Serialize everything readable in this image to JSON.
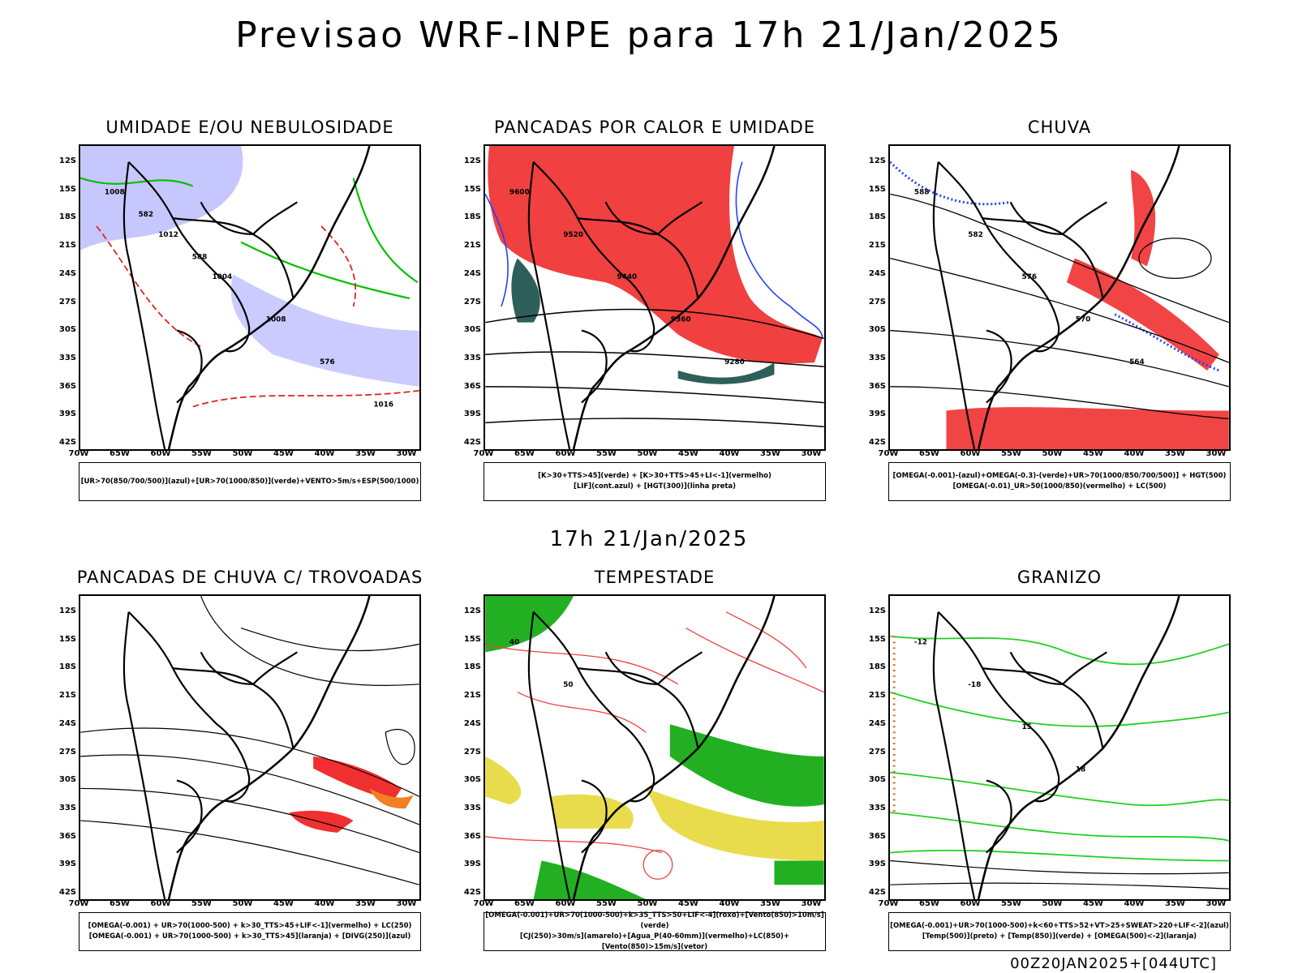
{
  "title": "Previsao WRF-INPE  para 17h 21/Jan/2025",
  "subtitle": "17h 21/Jan/2025",
  "footer": "00Z20JAN2025+[044UTC]",
  "axes": {
    "lat_labels": [
      "12S",
      "15S",
      "18S",
      "21S",
      "24S",
      "27S",
      "30S",
      "33S",
      "36S",
      "39S",
      "42S"
    ],
    "lon_labels": [
      "70W",
      "65W",
      "60W",
      "55W",
      "50W",
      "45W",
      "40W",
      "35W",
      "30W"
    ]
  },
  "panels": [
    {
      "title": "UMIDADE E/OU NEBULOSIDADE",
      "legend": [
        "[UR>70(850/700/500)](azul)+[UR>70(1000/850)](verde)+VENTO>5m/s+ESP(500/1000)"
      ],
      "contour_labels": [
        "1008",
        "1012",
        "1004",
        "1008",
        "576",
        "1016",
        "582",
        "588"
      ],
      "colors": {
        "fill": "#b9b9ff",
        "contour": "#00c000",
        "line2": "#e02020"
      }
    },
    {
      "title": "PANCADAS POR CALOR E UMIDADE",
      "legend": [
        "[K>30+TTS>45](verde) + [K>30+TTS>45+LI<-1](vermelho)",
        "[LIF](cont.azul) + [HGT(300)](linha preta)"
      ],
      "contour_labels": [
        "9600",
        "9520",
        "9440",
        "9360",
        "9280"
      ],
      "colors": {
        "fill": "#f04040",
        "fill2": "#2f5f5a",
        "contour": "#2040ff"
      }
    },
    {
      "title": "CHUVA",
      "legend": [
        "[OMEGA(-0.001)-(azul)+OMEGA(-0.3)-(verde)+UR>70(1000/850/700/500)] + HGT(500)",
        "[OMEGA(-0.01)_UR>50(1000/850)(vermelho) + LC(500)"
      ],
      "contour_labels": [
        "588",
        "582",
        "576",
        "570",
        "564"
      ],
      "colors": {
        "fill": "#f03030",
        "dots1": "#2040ff",
        "dots2": "#10b010"
      }
    },
    {
      "title": "PANCADAS DE CHUVA C/ TROVOADAS",
      "legend": [
        "[OMEGA(-0.001) + UR>70(1000-500) + k>30_TTS>45+LIF<-1](vermelho) + LC(250)",
        "[OMEGA(-0.001) + UR>70(1000-500) + k>30_TTS>45](laranja) + [DIVG(250)](azul)"
      ],
      "contour_labels": [],
      "colors": {
        "fill": "#f03030",
        "fill2": "#f08020",
        "dots": "#2040ff"
      }
    },
    {
      "title": "TEMPESTADE",
      "legend": [
        "[OMEGA(-0.001)+UR>70(1000-500)+k>35_TTS>50+LIF<-4](roxo)+[Vento(850)>10m/s](verde)",
        "[CJ(250)>30m/s](amarelo)+[Agua_P(40-60mm)](vermelho)+LC(850)+[Vento(850)>15m/s](vetor)"
      ],
      "contour_labels": [
        "40",
        "50"
      ],
      "colors": {
        "fill": "#22b022",
        "fill2": "#e6d838",
        "contour": "#f04040"
      }
    },
    {
      "title": "GRANIZO",
      "legend": [
        "[OMEGA(-0.001)+UR>70(1000-500)+k<60+TTS>52+VT>25+SWEAT>220+LIF<-2](azul)",
        "[Temp(500)](preto) + [Temp(850)](verde) + [OMEGA(500)<-2](laranja)"
      ],
      "contour_labels": [
        "-12",
        "-18",
        "15",
        "18"
      ],
      "colors": {
        "contour": "#20d020",
        "dots": "#e07020"
      }
    }
  ]
}
